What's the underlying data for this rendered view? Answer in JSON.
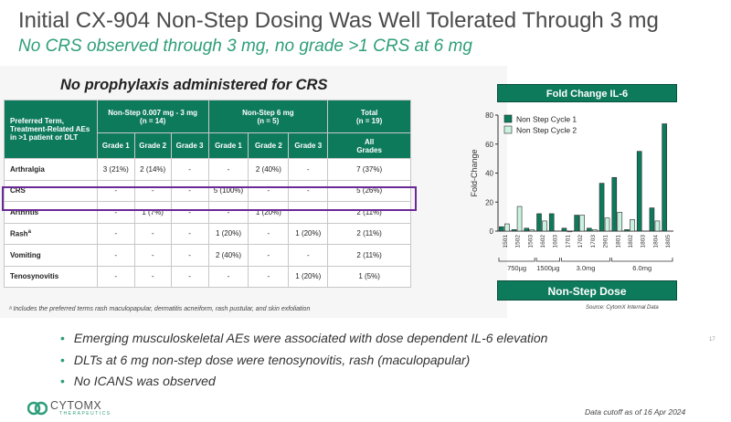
{
  "header": {
    "title": "Initial CX-904 Non-Step Dosing Was Well Tolerated Through 3 mg",
    "subtitle": "No CRS observed through 3 mg, no grade >1 CRS at 6 mg"
  },
  "table": {
    "heading": "No prophylaxis administered for CRS",
    "term_header": "Preferred Term, Treatment-Related AEs in >1 patient or DLT",
    "groups": [
      {
        "line1": "Non-Step 0.007 mg - 3 mg",
        "line2": "(n = 14)"
      },
      {
        "line1": "Non-Step 6 mg",
        "line2": "(n = 5)"
      },
      {
        "line1": "Total",
        "line2": "(n = 19)"
      }
    ],
    "grades": [
      "Grade 1",
      "Grade 2",
      "Grade 3",
      "Grade 1",
      "Grade 2",
      "Grade 3"
    ],
    "all_grades_line1": "All",
    "all_grades_line2": "Grades",
    "rows": [
      {
        "term": "Arthralgia",
        "sup": "",
        "cells": [
          "3 (21%)",
          "2 (14%)",
          "-",
          "-",
          "2 (40%)",
          "-",
          "7 (37%)"
        ]
      },
      {
        "term": "CRS",
        "sup": "",
        "cells": [
          "-",
          "-",
          "-",
          "5 (100%)",
          "-",
          "-",
          "5 (26%)"
        ]
      },
      {
        "term": "Arthritis",
        "sup": "",
        "cells": [
          "-",
          "1 (7%)",
          "-",
          "-",
          "1 (20%)",
          "",
          "2 (11%)"
        ]
      },
      {
        "term": "Rash",
        "sup": "a",
        "cells": [
          "-",
          "-",
          "-",
          "1 (20%)",
          "-",
          "1 (20%)",
          "2 (11%)"
        ]
      },
      {
        "term": "Vomiting",
        "sup": "",
        "cells": [
          "-",
          "-",
          "-",
          "2 (40%)",
          "-",
          "-",
          "2 (11%)"
        ]
      },
      {
        "term": "Tenosynovitis",
        "sup": "",
        "cells": [
          "-",
          "-",
          "-",
          "-",
          "-",
          "1 (20%)",
          "1 (5%)"
        ]
      }
    ],
    "footnote": "ᵃ Includes the preferred terms rash maculopapular, dermatitis acneiform, rash pustular, and skin exfoliation"
  },
  "chart_header": "Fold Change IL-6",
  "chart_data": {
    "type": "bar",
    "title": "Fold Change IL-6",
    "ylabel": "Fold-Change",
    "xlabel": "Non-Step Dose",
    "ylim": [
      0,
      80
    ],
    "yticks": [
      0,
      20,
      40,
      60,
      80
    ],
    "categories": [
      "1501",
      "1502",
      "1503",
      "1602",
      "1603",
      "1701",
      "1702",
      "1703",
      "2901",
      "1801",
      "1802",
      "1803",
      "1804",
      "1805"
    ],
    "series": [
      {
        "name": "Non Step Cycle 1",
        "color": "#0e7a5c",
        "values": [
          3,
          1,
          2,
          12,
          12,
          2,
          11,
          2,
          33,
          37,
          1,
          55,
          16,
          74
        ]
      },
      {
        "name": "Non Step Cycle 2",
        "color": "#c9f2e0",
        "values": [
          5,
          17,
          1,
          7,
          null,
          0,
          11,
          1,
          9,
          13,
          8,
          null,
          7,
          null
        ]
      }
    ],
    "dose_groups": [
      {
        "label": "750µg",
        "from": 0,
        "to": 2
      },
      {
        "label": "1500µg",
        "from": 3,
        "to": 4
      },
      {
        "label": "3.0mg",
        "from": 5,
        "to": 8
      },
      {
        "label": "6.0mg",
        "from": 9,
        "to": 13
      }
    ]
  },
  "dose_bar_label": "Non-Step Dose",
  "source": "Source: CytomX Internal Data",
  "bullets": [
    "Emerging musculoskeletal AEs were associated with dose dependent IL-6 elevation",
    "DLTs at 6 mg non-step dose were tenosynovitis, rash (maculopapular)",
    "No ICANS was observed"
  ],
  "footer": {
    "logo_word": "CYTOMX",
    "logo_sub": "THERAPEUTICS",
    "cutoff": "Data cutoff as of 16 Apr 2024",
    "page_number": "17"
  }
}
